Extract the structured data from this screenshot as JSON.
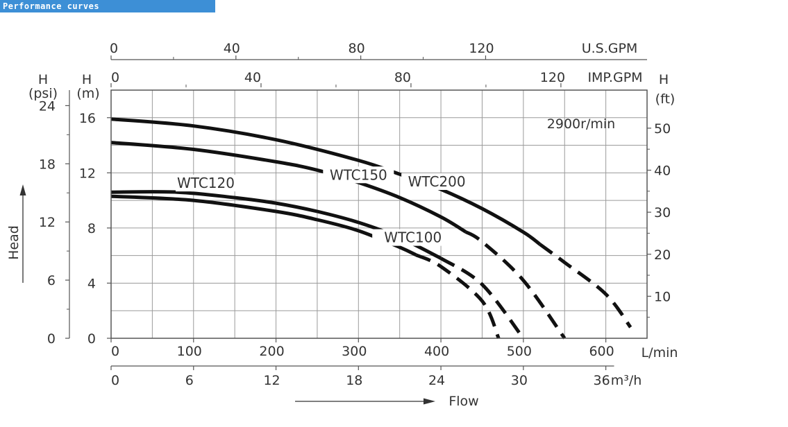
{
  "banner": {
    "title": "Performance curves"
  },
  "chart_data": {
    "type": "line",
    "title": "",
    "speed_label": "2900r/min",
    "xlabel": "Flow",
    "ylabel": "Head",
    "xlim": [
      0,
      650
    ],
    "ylim": [
      0,
      18
    ],
    "axes": {
      "x_lpm": {
        "unit": "L/min",
        "ticks": [
          0,
          100,
          200,
          300,
          400,
          500,
          600
        ]
      },
      "x_m3h": {
        "unit": "m³/h",
        "ticks": [
          0,
          6,
          12,
          18,
          24,
          30,
          36
        ]
      },
      "x_impgpm": {
        "unit": "IMP.GPM",
        "ticks": [
          0,
          40,
          80,
          120
        ]
      },
      "x_usgpm": {
        "unit": "U.S.GPM",
        "ticks": [
          0,
          40,
          80,
          120
        ]
      },
      "y_m": {
        "unit_h": "H",
        "unit": "(m)",
        "ticks": [
          0,
          4,
          8,
          12,
          16
        ]
      },
      "y_psi": {
        "unit_h": "H",
        "unit": "(psi)",
        "ticks": [
          0,
          6,
          12,
          18,
          24
        ]
      },
      "y_ft": {
        "unit_h": "H",
        "unit": "(ft)",
        "ticks": [
          10,
          20,
          30,
          40,
          50
        ]
      }
    },
    "grid": true,
    "series": [
      {
        "name": "WTC100",
        "points": [
          [
            0,
            10.3
          ],
          [
            100,
            10
          ],
          [
            200,
            9.2
          ],
          [
            250,
            8.6
          ],
          [
            300,
            7.8
          ],
          [
            350,
            6.6
          ],
          [
            400,
            5.2
          ],
          [
            450,
            2.7
          ],
          [
            470,
            0
          ]
        ],
        "dash_from": 370
      },
      {
        "name": "WTC120",
        "points": [
          [
            0,
            10.6
          ],
          [
            80,
            10.6
          ],
          [
            150,
            10.2
          ],
          [
            200,
            9.8
          ],
          [
            250,
            9.2
          ],
          [
            300,
            8.4
          ],
          [
            350,
            7.3
          ],
          [
            400,
            5.8
          ],
          [
            450,
            3.9
          ],
          [
            500,
            0
          ]
        ],
        "dash_from": 400
      },
      {
        "name": "WTC150",
        "points": [
          [
            0,
            14.2
          ],
          [
            100,
            13.7
          ],
          [
            200,
            12.8
          ],
          [
            250,
            12.2
          ],
          [
            300,
            11.3
          ],
          [
            350,
            10.2
          ],
          [
            400,
            8.8
          ],
          [
            450,
            7
          ],
          [
            500,
            4.2
          ],
          [
            550,
            0
          ]
        ],
        "dash_from": 430
      },
      {
        "name": "WTC200",
        "points": [
          [
            0,
            15.9
          ],
          [
            100,
            15.4
          ],
          [
            200,
            14.4
          ],
          [
            300,
            12.9
          ],
          [
            350,
            11.9
          ],
          [
            400,
            10.8
          ],
          [
            450,
            9.4
          ],
          [
            500,
            7.7
          ],
          [
            550,
            5.5
          ],
          [
            600,
            3.2
          ],
          [
            630,
            0.8
          ]
        ],
        "dash_from": 520
      }
    ]
  }
}
